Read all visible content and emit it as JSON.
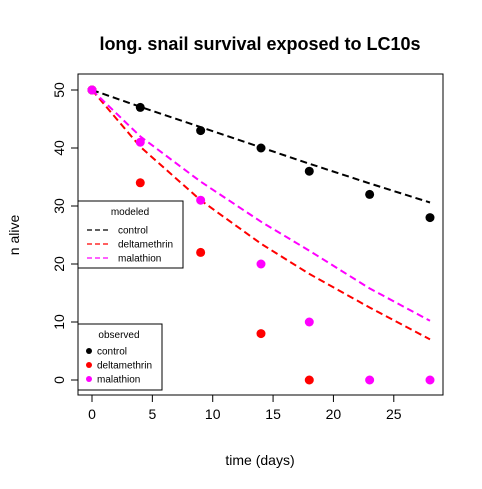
{
  "chart_data": {
    "type": "scatter",
    "title": "long. snail survival exposed to LC10s",
    "xlabel": "time (days)",
    "ylabel": "n alive",
    "xlim": [
      0,
      28
    ],
    "ylim": [
      0,
      50
    ],
    "x_ticks": [
      "0",
      "5",
      "10",
      "15",
      "20",
      "25"
    ],
    "y_ticks": [
      "0",
      "10",
      "20",
      "30",
      "40",
      "50"
    ],
    "grid": false,
    "observed": [
      {
        "name": "control",
        "color": "#000000",
        "x": [
          0,
          4,
          9,
          14,
          18,
          23,
          28
        ],
        "y": [
          50,
          47,
          43,
          40,
          36,
          32,
          28
        ]
      },
      {
        "name": "deltamethrin",
        "color": "#ff0000",
        "x": [
          0,
          4,
          9,
          14,
          18
        ],
        "y": [
          50,
          34,
          22,
          8,
          0
        ]
      },
      {
        "name": "malathion",
        "color": "#ff00ff",
        "x": [
          0,
          4,
          9,
          14,
          18,
          23,
          28
        ],
        "y": [
          50,
          41,
          31,
          20,
          10,
          0,
          0
        ]
      }
    ],
    "modeled": [
      {
        "name": "control",
        "color": "#000000",
        "x": [
          0,
          4,
          9,
          14,
          18,
          23,
          28
        ],
        "y": [
          50,
          47.1,
          43.6,
          40.1,
          37.3,
          33.9,
          30.6
        ]
      },
      {
        "name": "deltamethrin",
        "color": "#ff0000",
        "x": [
          0,
          4,
          9,
          14,
          18,
          23,
          28
        ],
        "y": [
          50,
          40.2,
          31.0,
          23.5,
          18.3,
          12.5,
          7.0
        ]
      },
      {
        "name": "malathion",
        "color": "#ff00ff",
        "x": [
          0,
          4,
          9,
          14,
          18,
          23,
          28
        ],
        "y": [
          50,
          42.0,
          34.2,
          27.3,
          22.3,
          15.8,
          10.2
        ]
      }
    ],
    "legend_modeled": {
      "title": "modeled",
      "placement": "middle-left",
      "entries": [
        {
          "label": "control",
          "color": "#000000"
        },
        {
          "label": "deltamethrin",
          "color": "#ff0000"
        },
        {
          "label": "malathion",
          "color": "#ff00ff"
        }
      ]
    },
    "legend_observed": {
      "title": "observed",
      "placement": "bottom-left",
      "entries": [
        {
          "label": "control",
          "color": "#000000"
        },
        {
          "label": "deltamethrin",
          "color": "#ff0000"
        },
        {
          "label": "malathion",
          "color": "#ff00ff"
        }
      ]
    }
  }
}
